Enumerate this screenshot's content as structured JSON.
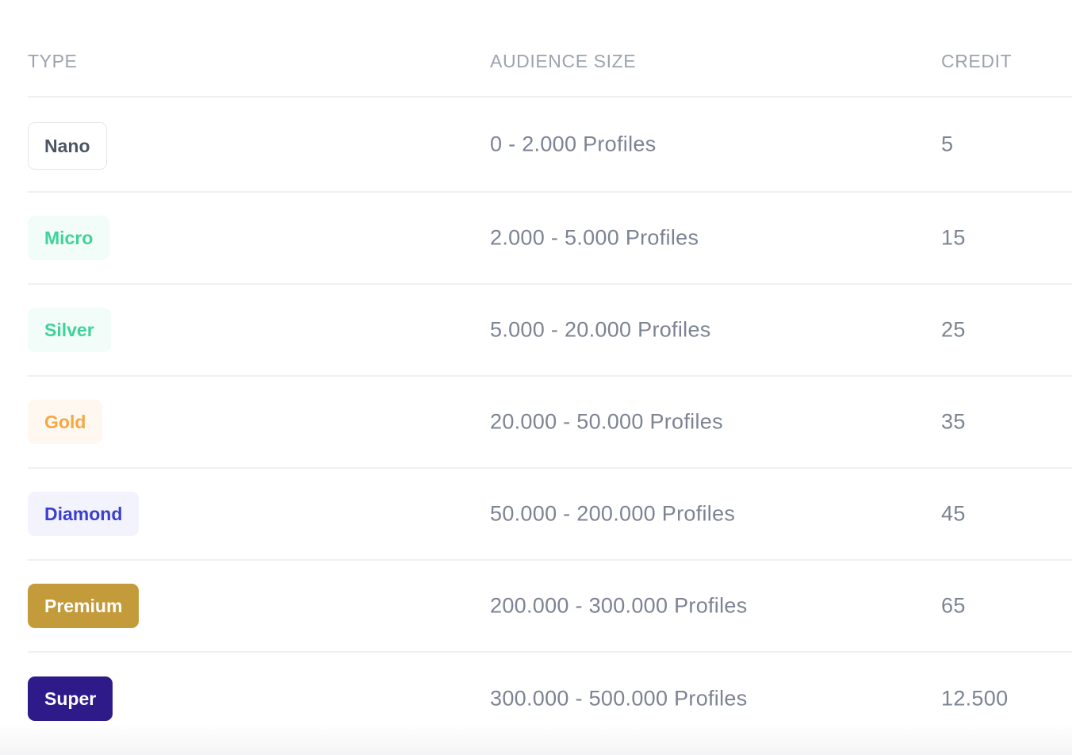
{
  "table": {
    "headers": {
      "type": "TYPE",
      "audience": "AUDIENCE SIZE",
      "credit": "CREDIT"
    },
    "rows": [
      {
        "type": "Nano",
        "audience": "0 - 2.000 Profiles",
        "credit": "5",
        "badge_bg": "#ffffff",
        "badge_color": "#4b5563",
        "badge_border": "#e5e7eb"
      },
      {
        "type": "Micro",
        "audience": "2.000 - 5.000 Profiles",
        "credit": "15",
        "badge_bg": "#f2fcf8",
        "badge_color": "#3fd39a",
        "badge_border": "transparent"
      },
      {
        "type": "Silver",
        "audience": "5.000 - 20.000 Profiles",
        "credit": "25",
        "badge_bg": "#f2fcf8",
        "badge_color": "#3fd39a",
        "badge_border": "transparent"
      },
      {
        "type": "Gold",
        "audience": "20.000 - 50.000 Profiles",
        "credit": "35",
        "badge_bg": "#fff8f1",
        "badge_color": "#f5a742",
        "badge_border": "transparent"
      },
      {
        "type": "Diamond",
        "audience": "50.000 - 200.000 Profiles",
        "credit": "45",
        "badge_bg": "#f3f3fd",
        "badge_color": "#3b3fcf",
        "badge_border": "transparent"
      },
      {
        "type": "Premium",
        "audience": "200.000 - 300.000 Profiles",
        "credit": "65",
        "badge_bg": "#c49b3a",
        "badge_color": "#ffffff",
        "badge_border": "transparent"
      },
      {
        "type": "Super",
        "audience": "300.000 - 500.000 Profiles",
        "credit": "12.500",
        "badge_bg": "#2f1a8a",
        "badge_color": "#ffffff",
        "badge_border": "transparent"
      }
    ]
  }
}
